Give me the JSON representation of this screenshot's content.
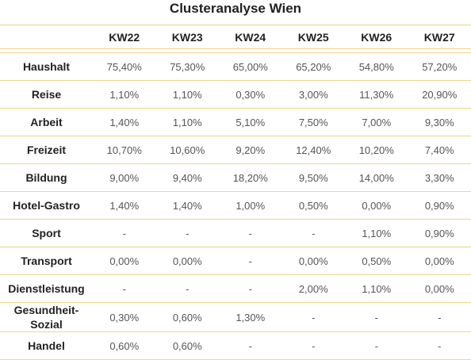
{
  "title": "Clusteranalyse Wien",
  "columns": [
    "KW22",
    "KW23",
    "KW24",
    "KW25",
    "KW26",
    "KW27"
  ],
  "rows": [
    {
      "label": "Haushalt",
      "values": [
        "75,40%",
        "75,30%",
        "65,00%",
        "65,20%",
        "54,80%",
        "57,20%"
      ]
    },
    {
      "label": "Reise",
      "values": [
        "1,10%",
        "1,10%",
        "0,30%",
        "3,00%",
        "11,30%",
        "20,90%"
      ]
    },
    {
      "label": "Arbeit",
      "values": [
        "1,40%",
        "1,10%",
        "5,10%",
        "7,50%",
        "7,00%",
        "9,30%"
      ]
    },
    {
      "label": "Freizeit",
      "values": [
        "10,70%",
        "10,60%",
        "9,20%",
        "12,40%",
        "10,20%",
        "7,40%"
      ]
    },
    {
      "label": "Bildung",
      "values": [
        "9,00%",
        "9,40%",
        "18,20%",
        "9,50%",
        "14,00%",
        "3,30%"
      ]
    },
    {
      "label": "Hotel-Gastro",
      "values": [
        "1,40%",
        "1,40%",
        "1,00%",
        "0,50%",
        "0,00%",
        "0,90%"
      ]
    },
    {
      "label": "Sport",
      "values": [
        "-",
        "-",
        "-",
        "-",
        "1,10%",
        "0,90%"
      ]
    },
    {
      "label": "Transport",
      "values": [
        "0,00%",
        "0,00%",
        "-",
        "0,00%",
        "0,50%",
        "0,00%"
      ]
    },
    {
      "label": "Dienstleistung",
      "values": [
        "-",
        "-",
        "-",
        "2,00%",
        "1,10%",
        "0,00%"
      ]
    },
    {
      "label": "Gesundheit-Sozial",
      "values": [
        "0,30%",
        "0,60%",
        "1,30%",
        "-",
        "-",
        "-"
      ]
    },
    {
      "label": "Handel",
      "values": [
        "0,60%",
        "0,60%",
        "-",
        "-",
        "-",
        "-"
      ]
    }
  ],
  "colors": {
    "rule": "#f2d48c",
    "text": "#222222",
    "value_text": "#555555"
  }
}
